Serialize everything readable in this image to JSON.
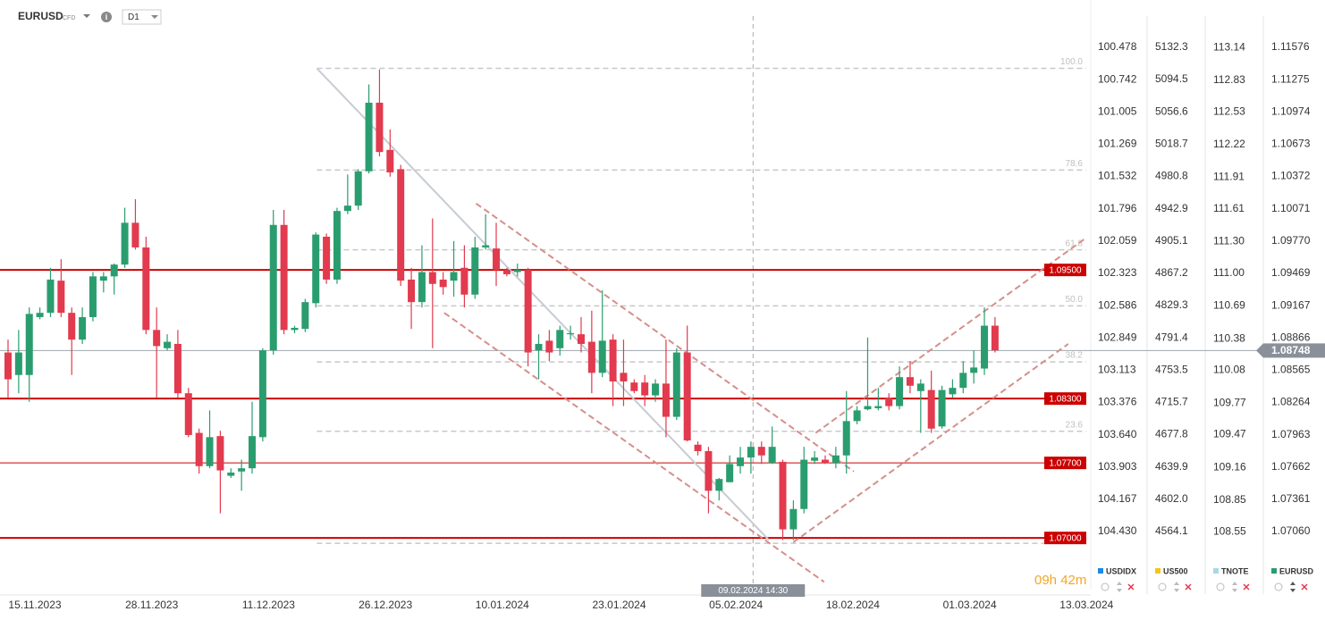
{
  "chart_data": {
    "type": "candlestick",
    "symbol": "EURUSD",
    "symbol_tag": "CFD",
    "timeframe": "D1",
    "dates": [
      "15.11.2023",
      "28.11.2023",
      "11.12.2023",
      "26.12.2023",
      "10.01.2024",
      "23.01.2024",
      "05.02.2024",
      "18.02.2024",
      "01.03.2024",
      "13.03.2024"
    ],
    "up_color": "#2a9d6f",
    "down_color": "#e23a4e",
    "open": [
      1.0873,
      1.0852,
      1.0852,
      1.0906,
      1.091,
      1.094,
      1.091,
      1.0885,
      1.0906,
      1.094,
      1.0944,
      1.0955,
      1.0994,
      1.0971,
      1.0894,
      1.0877,
      1.0881,
      1.0835,
      1.0798,
      1.0767,
      1.0795,
      1.0758,
      1.0762,
      1.0765,
      1.0794,
      1.0875,
      1.0992,
      1.0894,
      1.0895,
      1.0919,
      1.0981,
      1.0941,
      1.1005,
      1.101,
      1.1042,
      1.1106,
      1.1062,
      1.1044,
      1.0941,
      1.092,
      1.0948,
      1.0941,
      1.094,
      1.0952,
      1.0927,
      1.0971,
      1.097,
      1.095,
      1.0948,
      1.095,
      1.0875,
      1.0884,
      1.0877,
      1.089,
      1.089,
      1.0883,
      1.0854,
      1.0885,
      1.0854,
      1.0845,
      1.0845,
      1.0833,
      1.0844,
      1.0813,
      1.0873,
      1.0787,
      1.0781,
      1.0744,
      1.0752,
      1.0767,
      1.0775,
      1.0785,
      1.077,
      1.0771,
      1.0708,
      1.0727,
      1.0772,
      1.0773,
      1.077,
      1.0777,
      1.0809,
      1.082,
      1.0821,
      1.0831,
      1.0823,
      1.085,
      1.0837,
      1.0838,
      1.0804,
      1.0834,
      1.084,
      1.0854,
      1.0858,
      1.0898
    ],
    "high": [
      1.0885,
      1.0894,
      1.0915,
      1.0915,
      1.0952,
      1.096,
      1.0915,
      1.0915,
      1.0948,
      1.0948,
      1.0956,
      1.1008,
      1.1016,
      1.0981,
      1.0915,
      1.089,
      1.0894,
      1.084,
      1.0802,
      1.0819,
      1.08,
      1.0765,
      1.0773,
      1.0827,
      1.0877,
      1.1006,
      1.1006,
      1.0898,
      1.0923,
      1.0985,
      1.0984,
      1.1008,
      1.1039,
      1.1044,
      1.1123,
      1.1137,
      1.1081,
      1.1048,
      1.0952,
      1.0973,
      1.0998,
      1.0948,
      1.0977,
      1.0973,
      1.0981,
      1.1002,
      1.0994,
      1.0952,
      1.0956,
      1.0952,
      1.089,
      1.0894,
      1.0898,
      1.0898,
      1.0906,
      1.0912,
      1.0931,
      1.089,
      1.0885,
      1.0848,
      1.0852,
      1.0848,
      1.0885,
      1.0877,
      1.0898,
      1.079,
      1.0785,
      1.0756,
      1.0777,
      1.0785,
      1.079,
      1.079,
      1.0804,
      1.0773,
      1.0735,
      1.0785,
      1.0781,
      1.0777,
      1.0785,
      1.0837,
      1.0823,
      1.0887,
      1.084,
      1.0835,
      1.086,
      1.0865,
      1.0848,
      1.0856,
      1.0842,
      1.0848,
      1.0865,
      1.0875,
      1.0915,
      1.0906
    ],
    "low": [
      1.0831,
      1.0835,
      1.0827,
      1.0904,
      1.0906,
      1.0906,
      1.0852,
      1.0881,
      1.0902,
      1.0929,
      1.0927,
      1.0952,
      1.0969,
      1.089,
      1.0831,
      1.0875,
      1.0831,
      1.0794,
      1.076,
      1.0765,
      1.0723,
      1.0756,
      1.0744,
      1.076,
      1.079,
      1.0871,
      1.089,
      1.0891,
      1.0892,
      1.0915,
      1.0937,
      1.0937,
      1.1002,
      1.1006,
      1.104,
      1.1056,
      1.1037,
      1.0935,
      1.0895,
      1.0915,
      1.0877,
      1.0927,
      1.0925,
      1.0915,
      1.0923,
      1.0969,
      1.0935,
      1.0944,
      1.0944,
      1.086,
      1.0848,
      1.0865,
      1.087,
      1.0885,
      1.0873,
      1.0835,
      1.085,
      1.0823,
      1.0823,
      1.0835,
      1.0823,
      1.0827,
      1.0794,
      1.081,
      1.079,
      1.0777,
      1.0723,
      1.0735,
      1.0752,
      1.076,
      1.076,
      1.0769,
      1.0769,
      1.0698,
      1.0698,
      1.0723,
      1.0769,
      1.0769,
      1.0765,
      1.076,
      1.0806,
      1.0819,
      1.0819,
      1.0819,
      1.082,
      1.0835,
      1.0798,
      1.0798,
      1.0802,
      1.0831,
      1.0835,
      1.0844,
      1.0852,
      1.0873
    ],
    "close": [
      1.0848,
      1.0873,
      1.0909,
      1.091,
      1.0941,
      1.091,
      1.0885,
      1.0906,
      1.0944,
      1.0944,
      1.0955,
      1.0994,
      1.0971,
      1.0894,
      1.0879,
      1.0883,
      1.0835,
      1.0796,
      1.0767,
      1.0794,
      1.0763,
      1.0761,
      1.0765,
      1.0795,
      1.0875,
      1.0992,
      1.0894,
      1.0896,
      1.092,
      1.0983,
      1.0941,
      1.1005,
      1.101,
      1.1042,
      1.1106,
      1.106,
      1.1041,
      1.094,
      1.092,
      1.0948,
      1.0937,
      1.0934,
      1.0948,
      1.0927,
      1.0971,
      1.0973,
      1.095,
      1.0946,
      1.095,
      1.0873,
      1.0881,
      1.0873,
      1.0894,
      1.0891,
      1.0881,
      1.0854,
      1.0884,
      1.0846,
      1.0846,
      1.0837,
      1.0833,
      1.0844,
      1.0813,
      1.0873,
      1.0791,
      1.0781,
      1.0744,
      1.0755,
      1.0769,
      1.0775,
      1.0785,
      1.0777,
      1.0785,
      1.0708,
      1.0727,
      1.0773,
      1.0775,
      1.077,
      1.0777,
      1.0809,
      1.0819,
      1.0823,
      1.0823,
      1.0823,
      1.085,
      1.0842,
      1.0844,
      1.0802,
      1.0838,
      1.084,
      1.0854,
      1.0859,
      1.0898,
      1.0875
    ],
    "axes": [
      {
        "name": "USDIDX",
        "color": "#1e88e5",
        "ylim": [
          104.904,
          100.223
        ],
        "yticks": [
          100.478,
          100.742,
          101.005,
          101.269,
          101.532,
          101.796,
          102.059,
          102.323,
          102.586,
          102.849,
          103.113,
          103.376,
          {
            "value": 103.64,
            "label": "103.640"
          },
          103.903,
          104.167,
          {
            "value": 104.43,
            "label": "104.430"
          }
        ]
      },
      {
        "name": "US500",
        "color": "#f5c518",
        "ylim": [
          4496.0,
          5169.0
        ],
        "yticks": [
          5132.3,
          5094.5,
          5056.6,
          5018.7,
          4980.8,
          4942.9,
          4905.1,
          4867.2,
          4829.3,
          4791.4,
          4753.5,
          4715.7,
          4677.8,
          4639.9,
          {
            "value": 4602,
            "label": "4602.0"
          },
          4564.1
        ]
      },
      {
        "name": "TNOTE",
        "color": "#a8d8ea",
        "ylim": [
          108.0,
          113.44
        ],
        "yticks": [
          113.14,
          112.83,
          112.53,
          112.22,
          111.91,
          111.61,
          {
            "value": 111.3,
            "label": "111.30"
          },
          {
            "value": 111,
            "label": "111.00"
          },
          110.69,
          110.38,
          110.08,
          109.77,
          109.47,
          109.16,
          108.85,
          108.55
        ]
      },
      {
        "name": "EURUSD",
        "color": "#2a9d6f",
        "ylim": [
          1.06518,
          1.11868
        ],
        "yticks": [
          1.11576,
          1.11275,
          1.10974,
          1.10673,
          1.10372,
          1.10071,
          {
            "value": 1.0977,
            "label": "1.09770"
          },
          1.09469,
          1.09167,
          1.08866,
          1.08565,
          1.08264,
          1.07963,
          1.07662,
          1.07361,
          {
            "value": 1.0706,
            "label": "1.07060"
          }
        ]
      }
    ],
    "hlines": [
      {
        "value": 1.095,
        "label": "1.09500",
        "color": "#cc0000",
        "width": 2
      },
      {
        "value": 1.083,
        "label": "1.08300",
        "color": "#cc0000",
        "width": 2
      },
      {
        "value": 1.077,
        "label": "1.07700",
        "color": "#cc0000",
        "width": 1
      },
      {
        "value": 1.07,
        "label": "1.07000",
        "color": "#cc0000",
        "width": 2
      }
    ],
    "last_price": {
      "value": 1.08748,
      "label": "1.08748"
    },
    "fib": {
      "high": 1.1138,
      "low": 1.0695,
      "start": 29.1,
      "color": "#c8c8c8",
      "levels": [
        {
          "value": 100,
          "label": "100.0"
        },
        78.6,
        61.8,
        {
          "value": 50,
          "label": "50.0"
        },
        38.2,
        23.6
      ]
    },
    "trendlines": [
      {
        "points": [
          [
            29.1,
            1.1138
          ],
          [
            71.7,
            1.0698
          ]
        ],
        "color": "#c5ccd3",
        "dash": false,
        "width": 2
      },
      {
        "points": [
          [
            44.1,
            1.1012
          ],
          [
            79.7,
            1.0762
          ]
        ],
        "color": "#d58f8a",
        "dash": true,
        "width": 2
      },
      {
        "points": [
          [
            41.1,
            1.091
          ],
          [
            76.9,
            1.0659
          ]
        ],
        "color": "#d58f8a",
        "dash": true,
        "width": 2
      },
      {
        "points": [
          [
            76.1,
            1.0798
          ],
          [
            101.6,
            1.098
          ]
        ],
        "color": "#d58f8a",
        "dash": true,
        "width": 2
      },
      {
        "points": [
          [
            74.0,
            1.0696
          ],
          [
            99.9,
            1.0881
          ]
        ],
        "color": "#d58f8a",
        "dash": true,
        "width": 2
      }
    ],
    "crosshair": {
      "x": 70.2,
      "label": "09.02.2024 14:30"
    },
    "countdown": "09h 42m"
  }
}
